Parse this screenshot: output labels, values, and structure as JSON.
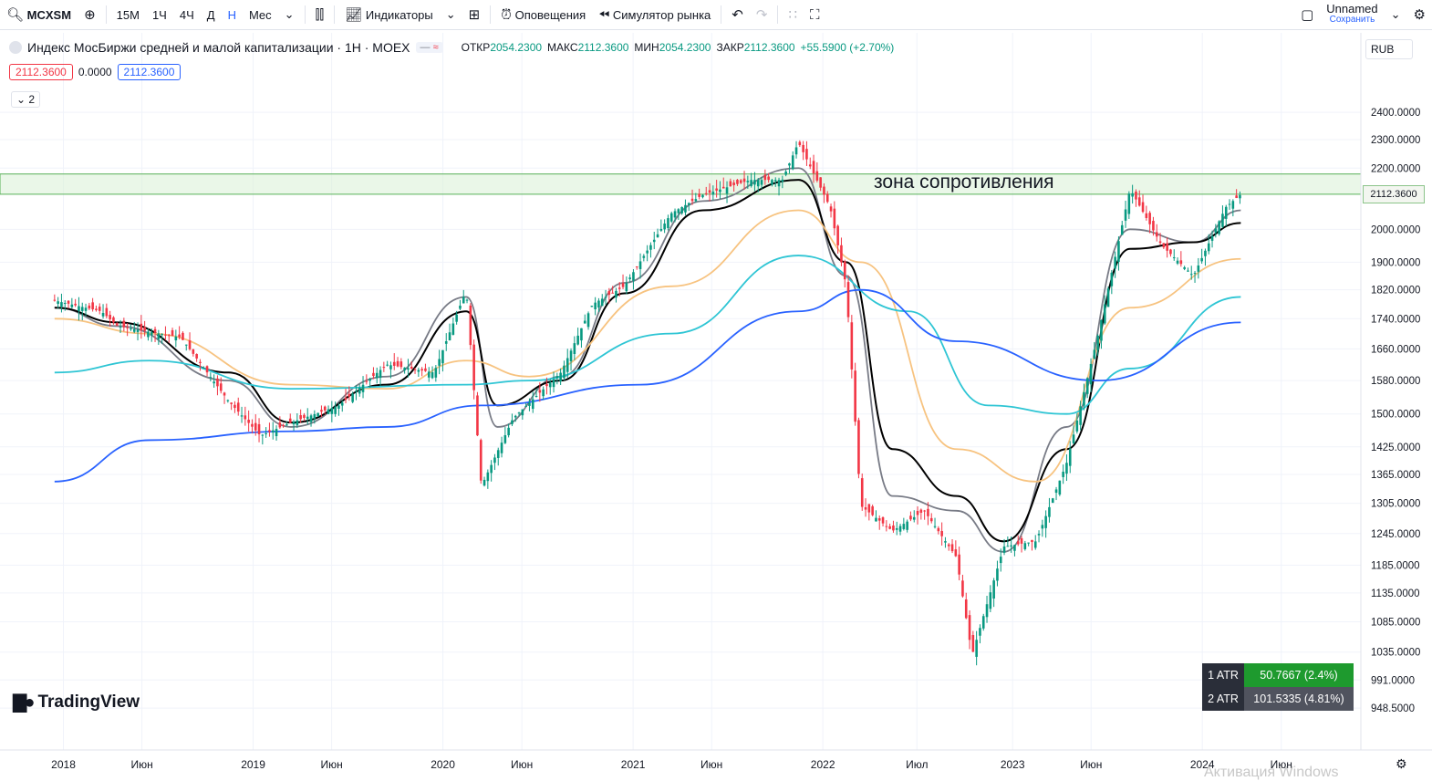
{
  "toolbar": {
    "symbol": "MCXSM",
    "intervals": [
      "15М",
      "1Ч",
      "4Ч",
      "Д",
      "Н",
      "Мес"
    ],
    "active_interval": "Н",
    "indicators": "Индикаторы",
    "alerts": "Оповещения",
    "replay": "Симулятор рынка",
    "layout_name": "Unnamed",
    "layout_status": "Сохранить"
  },
  "legend": {
    "title": "Индекс МосБиржи средней и малой капитализации · 1Н · MOEX",
    "open_label": "ОТКР",
    "open": "2054.2300",
    "high_label": "МАКС",
    "high": "2112.3600",
    "low_label": "МИН",
    "low": "2054.2300",
    "close_label": "ЗАКР",
    "close": "2112.3600",
    "change": "+55.5900 (+2.70%)",
    "bid": "2112.3600",
    "spread": "0.0000",
    "ask": "2112.3600",
    "indicators_count": "2"
  },
  "currency": "RUB",
  "annotation": "зона сопротивления",
  "last_price": "2112.3600",
  "atr": [
    {
      "label": "1 ATR",
      "value": "50.7667 (2.4%)",
      "color": "#1e9a2e"
    },
    {
      "label": "2 ATR",
      "value": "101.5335 (4.81%)",
      "color": "#50535e"
    }
  ],
  "brand": "TradingView",
  "watermark": "Активация Windows",
  "chart_data": {
    "type": "candlestick",
    "y_scale": "log",
    "y_ticks": [
      "2400.0000",
      "2300.0000",
      "2200.0000",
      "2112.3600",
      "2000.0000",
      "1900.0000",
      "1820.0000",
      "1740.0000",
      "1660.0000",
      "1580.0000",
      "1500.0000",
      "1425.0000",
      "1365.0000",
      "1305.0000",
      "1245.0000",
      "1185.0000",
      "1135.0000",
      "1085.0000",
      "1035.0000",
      "991.0000",
      "948.5000"
    ],
    "x_ticks": [
      "2018",
      "Июн",
      "2019",
      "Июн",
      "2020",
      "Июн",
      "2021",
      "Июн",
      "2022",
      "Июл",
      "2023",
      "Июн",
      "2024",
      "Июн"
    ],
    "resistance_zone": [
      2112.36,
      2180
    ],
    "series": [
      {
        "name": "price",
        "color": "#ef5350",
        "x": [
          "2017-12",
          "2018-03",
          "2018-04",
          "2018-08",
          "2018-11",
          "2019-01",
          "2019-03",
          "2019-06",
          "2019-09",
          "2019-12",
          "2020-02",
          "2020-03",
          "2020-05",
          "2020-08",
          "2020-10",
          "2020-12",
          "2021-03",
          "2021-05",
          "2021-08",
          "2021-10",
          "2021-11",
          "2022-01",
          "2022-02",
          "2022-03",
          "2022-05",
          "2022-07",
          "2022-09",
          "2022-10",
          "2022-12",
          "2023-02",
          "2023-04",
          "2023-06",
          "2023-08",
          "2023-10",
          "2023-12",
          "2024-02",
          "2024-03"
        ],
        "y": [
          1790,
          1760,
          1720,
          1690,
          1530,
          1450,
          1480,
          1520,
          1620,
          1600,
          1820,
          1340,
          1490,
          1600,
          1780,
          1830,
          2050,
          2110,
          2160,
          2160,
          2290,
          2070,
          1830,
          1300,
          1250,
          1290,
          1200,
          1030,
          1220,
          1230,
          1390,
          1700,
          2130,
          1950,
          1860,
          2070,
          2112
        ]
      },
      {
        "name": "sma-fast",
        "color": "#787b86",
        "x": [
          "2017-12",
          "2018-04",
          "2018-11",
          "2019-03",
          "2019-09",
          "2020-02",
          "2020-04",
          "2020-08",
          "2020-12",
          "2021-05",
          "2021-11",
          "2022-02",
          "2022-05",
          "2022-09",
          "2022-12",
          "2023-04",
          "2023-08",
          "2023-12",
          "2024-03"
        ],
        "y": [
          1770,
          1720,
          1580,
          1470,
          1590,
          1800,
          1470,
          1590,
          1840,
          2090,
          2200,
          1860,
          1320,
          1290,
          1210,
          1470,
          2000,
          1960,
          2060
        ]
      },
      {
        "name": "sma-mid",
        "color": "#000000",
        "x": [
          "2017-12",
          "2018-04",
          "2018-11",
          "2019-03",
          "2019-09",
          "2020-02",
          "2020-04",
          "2020-08",
          "2020-12",
          "2021-05",
          "2021-11",
          "2022-02",
          "2022-05",
          "2022-09",
          "2022-12",
          "2023-04",
          "2023-08",
          "2023-12",
          "2024-03"
        ],
        "y": [
          1770,
          1730,
          1600,
          1480,
          1570,
          1760,
          1520,
          1580,
          1810,
          2060,
          2160,
          1900,
          1420,
          1320,
          1230,
          1420,
          1940,
          1960,
          2020
        ]
      },
      {
        "name": "sma-slow",
        "color": "#f7c380",
        "x": [
          "2017-12",
          "2018-06",
          "2019-03",
          "2019-09",
          "2020-02",
          "2020-06",
          "2021-03",
          "2021-11",
          "2022-03",
          "2022-09",
          "2023-02",
          "2023-08",
          "2024-03"
        ],
        "y": [
          1740,
          1700,
          1570,
          1560,
          1630,
          1590,
          1830,
          2060,
          1900,
          1420,
          1350,
          1770,
          1910
        ]
      },
      {
        "name": "sma-200",
        "color": "#2ec5d4",
        "x": [
          "2017-12",
          "2018-06",
          "2019-03",
          "2020-02",
          "2020-06",
          "2021-03",
          "2021-11",
          "2022-06",
          "2022-11",
          "2023-04",
          "2023-08",
          "2024-03"
        ],
        "y": [
          1600,
          1630,
          1560,
          1570,
          1580,
          1700,
          1920,
          1760,
          1520,
          1500,
          1610,
          1800
        ]
      },
      {
        "name": "sma-52",
        "color": "#2962ff",
        "x": [
          "2017-12",
          "2018-06",
          "2019-03",
          "2019-09",
          "2020-03",
          "2021-01",
          "2021-11",
          "2022-03",
          "2022-09",
          "2023-06",
          "2024-03"
        ],
        "y": [
          1350,
          1440,
          1460,
          1470,
          1520,
          1570,
          1760,
          1820,
          1680,
          1580,
          1730
        ]
      }
    ]
  }
}
